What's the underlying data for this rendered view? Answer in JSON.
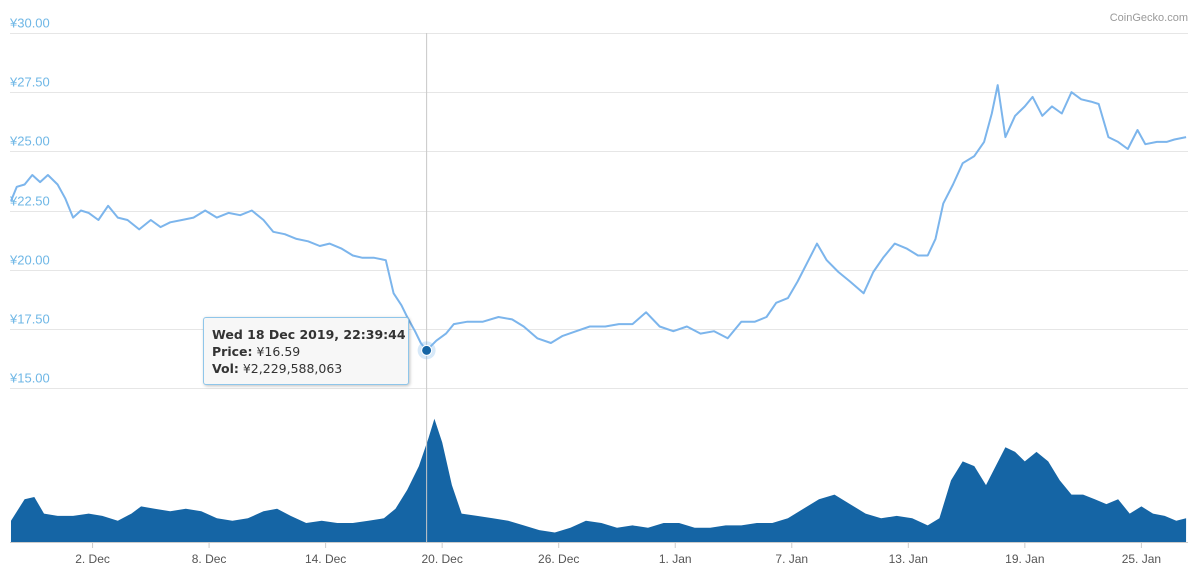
{
  "credit": "CoinGecko.com",
  "tooltip": {
    "date": "Wed 18 Dec 2019, 22:39:44",
    "price_label": "Price:",
    "price_value": "¥16.59",
    "vol_label": "Vol:",
    "vol_value": "¥2,229,588,063"
  },
  "chart_data": {
    "type": "line",
    "title": "",
    "xlabel": "",
    "ylabel": "",
    "ylim": [
      15,
      30
    ],
    "y_ticks": [
      "¥15.00",
      "¥17.50",
      "¥20.00",
      "¥22.50",
      "¥25.00",
      "¥27.50",
      "¥30.00"
    ],
    "y_tick_values": [
      15,
      17.5,
      20,
      22.5,
      25,
      27.5,
      30
    ],
    "x_ticks": [
      "2. Dec",
      "8. Dec",
      "14. Dec",
      "20. Dec",
      "26. Dec",
      "1. Jan",
      "7. Jan",
      "13. Jan",
      "19. Jan",
      "25. Jan"
    ],
    "x_tick_days": [
      2,
      8,
      14,
      20,
      26,
      32,
      38,
      44,
      50,
      56
    ],
    "xlim_days": [
      -2.25,
      58.4
    ],
    "grid": true,
    "legend": "none",
    "colors": {
      "price": "#7cb5ec",
      "volume": "#1565a5",
      "crosshair": "#c8c8c8"
    },
    "series": [
      {
        "points": [
          [
            -2.2,
            22.9
          ],
          [
            -1.9,
            23.5
          ],
          [
            -1.5,
            23.6
          ],
          [
            -1.1,
            24.0
          ],
          [
            -0.7,
            23.7
          ],
          [
            -0.3,
            24.0
          ],
          [
            0.2,
            23.6
          ],
          [
            0.6,
            23.0
          ],
          [
            1.0,
            22.2
          ],
          [
            1.4,
            22.5
          ],
          [
            1.8,
            22.4
          ],
          [
            2.3,
            22.1
          ],
          [
            2.8,
            22.7
          ],
          [
            3.3,
            22.2
          ],
          [
            3.8,
            22.1
          ],
          [
            4.4,
            21.7
          ],
          [
            5.0,
            22.1
          ],
          [
            5.5,
            21.8
          ],
          [
            6.0,
            22.0
          ],
          [
            6.6,
            22.1
          ],
          [
            7.2,
            22.2
          ],
          [
            7.8,
            22.5
          ],
          [
            8.4,
            22.2
          ],
          [
            9.0,
            22.4
          ],
          [
            9.6,
            22.3
          ],
          [
            10.2,
            22.5
          ],
          [
            10.8,
            22.1
          ],
          [
            11.3,
            21.6
          ],
          [
            11.9,
            21.5
          ],
          [
            12.5,
            21.3
          ],
          [
            13.1,
            21.2
          ],
          [
            13.7,
            21.0
          ],
          [
            14.2,
            21.1
          ],
          [
            14.8,
            20.9
          ],
          [
            15.4,
            20.6
          ],
          [
            15.9,
            20.5
          ],
          [
            16.5,
            20.5
          ],
          [
            17.1,
            20.4
          ],
          [
            17.5,
            19.0
          ],
          [
            17.9,
            18.5
          ],
          [
            18.2,
            18.0
          ],
          [
            18.6,
            17.4
          ],
          [
            18.9,
            16.9
          ],
          [
            19.2,
            16.59
          ],
          [
            19.7,
            17.0
          ],
          [
            20.2,
            17.3
          ],
          [
            20.6,
            17.7
          ],
          [
            21.3,
            17.8
          ],
          [
            22.1,
            17.8
          ],
          [
            22.9,
            18.0
          ],
          [
            23.6,
            17.9
          ],
          [
            24.2,
            17.6
          ],
          [
            24.9,
            17.1
          ],
          [
            25.6,
            16.9
          ],
          [
            26.2,
            17.2
          ],
          [
            26.9,
            17.4
          ],
          [
            27.6,
            17.6
          ],
          [
            28.4,
            17.6
          ],
          [
            29.1,
            17.7
          ],
          [
            29.8,
            17.7
          ],
          [
            30.5,
            18.2
          ],
          [
            31.2,
            17.6
          ],
          [
            31.9,
            17.4
          ],
          [
            32.6,
            17.6
          ],
          [
            33.3,
            17.3
          ],
          [
            34.0,
            17.4
          ],
          [
            34.7,
            17.1
          ],
          [
            35.4,
            17.8
          ],
          [
            36.1,
            17.8
          ],
          [
            36.7,
            18.0
          ],
          [
            37.2,
            18.6
          ],
          [
            37.8,
            18.8
          ],
          [
            38.3,
            19.5
          ],
          [
            38.8,
            20.3
          ],
          [
            39.3,
            21.1
          ],
          [
            39.8,
            20.4
          ],
          [
            40.4,
            19.9
          ],
          [
            41.0,
            19.5
          ],
          [
            41.7,
            19.0
          ],
          [
            42.2,
            19.9
          ],
          [
            42.7,
            20.5
          ],
          [
            43.3,
            21.1
          ],
          [
            43.9,
            20.9
          ],
          [
            44.5,
            20.6
          ],
          [
            45.0,
            20.6
          ],
          [
            45.4,
            21.3
          ],
          [
            45.8,
            22.8
          ],
          [
            46.3,
            23.6
          ],
          [
            46.8,
            24.5
          ],
          [
            47.4,
            24.8
          ],
          [
            47.9,
            25.4
          ],
          [
            48.3,
            26.6
          ],
          [
            48.6,
            27.8
          ],
          [
            49.0,
            25.6
          ],
          [
            49.5,
            26.5
          ],
          [
            50.0,
            26.9
          ],
          [
            50.4,
            27.3
          ],
          [
            50.9,
            26.5
          ],
          [
            51.4,
            26.9
          ],
          [
            51.9,
            26.6
          ],
          [
            52.4,
            27.5
          ],
          [
            52.9,
            27.2
          ],
          [
            53.4,
            27.1
          ],
          [
            53.8,
            27.0
          ],
          [
            54.3,
            25.6
          ],
          [
            54.8,
            25.4
          ],
          [
            55.3,
            25.1
          ],
          [
            55.8,
            25.9
          ],
          [
            56.2,
            25.3
          ],
          [
            56.8,
            25.4
          ],
          [
            57.3,
            25.4
          ],
          [
            57.7,
            25.5
          ],
          [
            58.3,
            25.6
          ]
        ]
      },
      {
        "name": "Vol",
        "unit": "¥ billion",
        "points": [
          [
            -2.2,
            0.45
          ],
          [
            -1.5,
            0.9
          ],
          [
            -1.0,
            0.95
          ],
          [
            -0.5,
            0.6
          ],
          [
            0.2,
            0.55
          ],
          [
            1.0,
            0.55
          ],
          [
            1.8,
            0.6
          ],
          [
            2.5,
            0.55
          ],
          [
            3.3,
            0.45
          ],
          [
            4.0,
            0.6
          ],
          [
            4.5,
            0.75
          ],
          [
            5.2,
            0.7
          ],
          [
            6.0,
            0.65
          ],
          [
            6.8,
            0.7
          ],
          [
            7.6,
            0.65
          ],
          [
            8.4,
            0.5
          ],
          [
            9.2,
            0.45
          ],
          [
            10.0,
            0.5
          ],
          [
            10.8,
            0.65
          ],
          [
            11.5,
            0.7
          ],
          [
            12.2,
            0.55
          ],
          [
            13.0,
            0.4
          ],
          [
            13.8,
            0.45
          ],
          [
            14.6,
            0.4
          ],
          [
            15.4,
            0.4
          ],
          [
            16.2,
            0.45
          ],
          [
            17.0,
            0.5
          ],
          [
            17.6,
            0.7
          ],
          [
            18.2,
            1.1
          ],
          [
            18.8,
            1.6
          ],
          [
            19.3,
            2.2
          ],
          [
            19.6,
            2.6
          ],
          [
            20.0,
            2.1
          ],
          [
            20.5,
            1.2
          ],
          [
            21.0,
            0.6
          ],
          [
            21.8,
            0.55
          ],
          [
            22.6,
            0.5
          ],
          [
            23.4,
            0.45
          ],
          [
            24.2,
            0.35
          ],
          [
            25.0,
            0.25
          ],
          [
            25.8,
            0.2
          ],
          [
            26.6,
            0.3
          ],
          [
            27.4,
            0.45
          ],
          [
            28.2,
            0.4
          ],
          [
            29.0,
            0.3
          ],
          [
            29.8,
            0.35
          ],
          [
            30.6,
            0.3
          ],
          [
            31.4,
            0.4
          ],
          [
            32.2,
            0.4
          ],
          [
            33.0,
            0.3
          ],
          [
            33.8,
            0.3
          ],
          [
            34.6,
            0.35
          ],
          [
            35.4,
            0.35
          ],
          [
            36.2,
            0.4
          ],
          [
            37.0,
            0.4
          ],
          [
            37.8,
            0.5
          ],
          [
            38.6,
            0.7
          ],
          [
            39.4,
            0.9
          ],
          [
            40.2,
            1.0
          ],
          [
            41.0,
            0.8
          ],
          [
            41.8,
            0.6
          ],
          [
            42.6,
            0.5
          ],
          [
            43.4,
            0.55
          ],
          [
            44.2,
            0.5
          ],
          [
            45.0,
            0.35
          ],
          [
            45.6,
            0.5
          ],
          [
            46.2,
            1.3
          ],
          [
            46.8,
            1.7
          ],
          [
            47.4,
            1.6
          ],
          [
            48.0,
            1.2
          ],
          [
            48.5,
            1.6
          ],
          [
            49.0,
            2.0
          ],
          [
            49.5,
            1.9
          ],
          [
            50.0,
            1.7
          ],
          [
            50.6,
            1.9
          ],
          [
            51.2,
            1.7
          ],
          [
            51.8,
            1.3
          ],
          [
            52.4,
            1.0
          ],
          [
            53.0,
            1.0
          ],
          [
            53.6,
            0.9
          ],
          [
            54.2,
            0.8
          ],
          [
            54.8,
            0.9
          ],
          [
            55.4,
            0.6
          ],
          [
            56.0,
            0.75
          ],
          [
            56.6,
            0.6
          ],
          [
            57.2,
            0.55
          ],
          [
            57.8,
            0.45
          ],
          [
            58.3,
            0.5
          ]
        ]
      }
    ]
  }
}
